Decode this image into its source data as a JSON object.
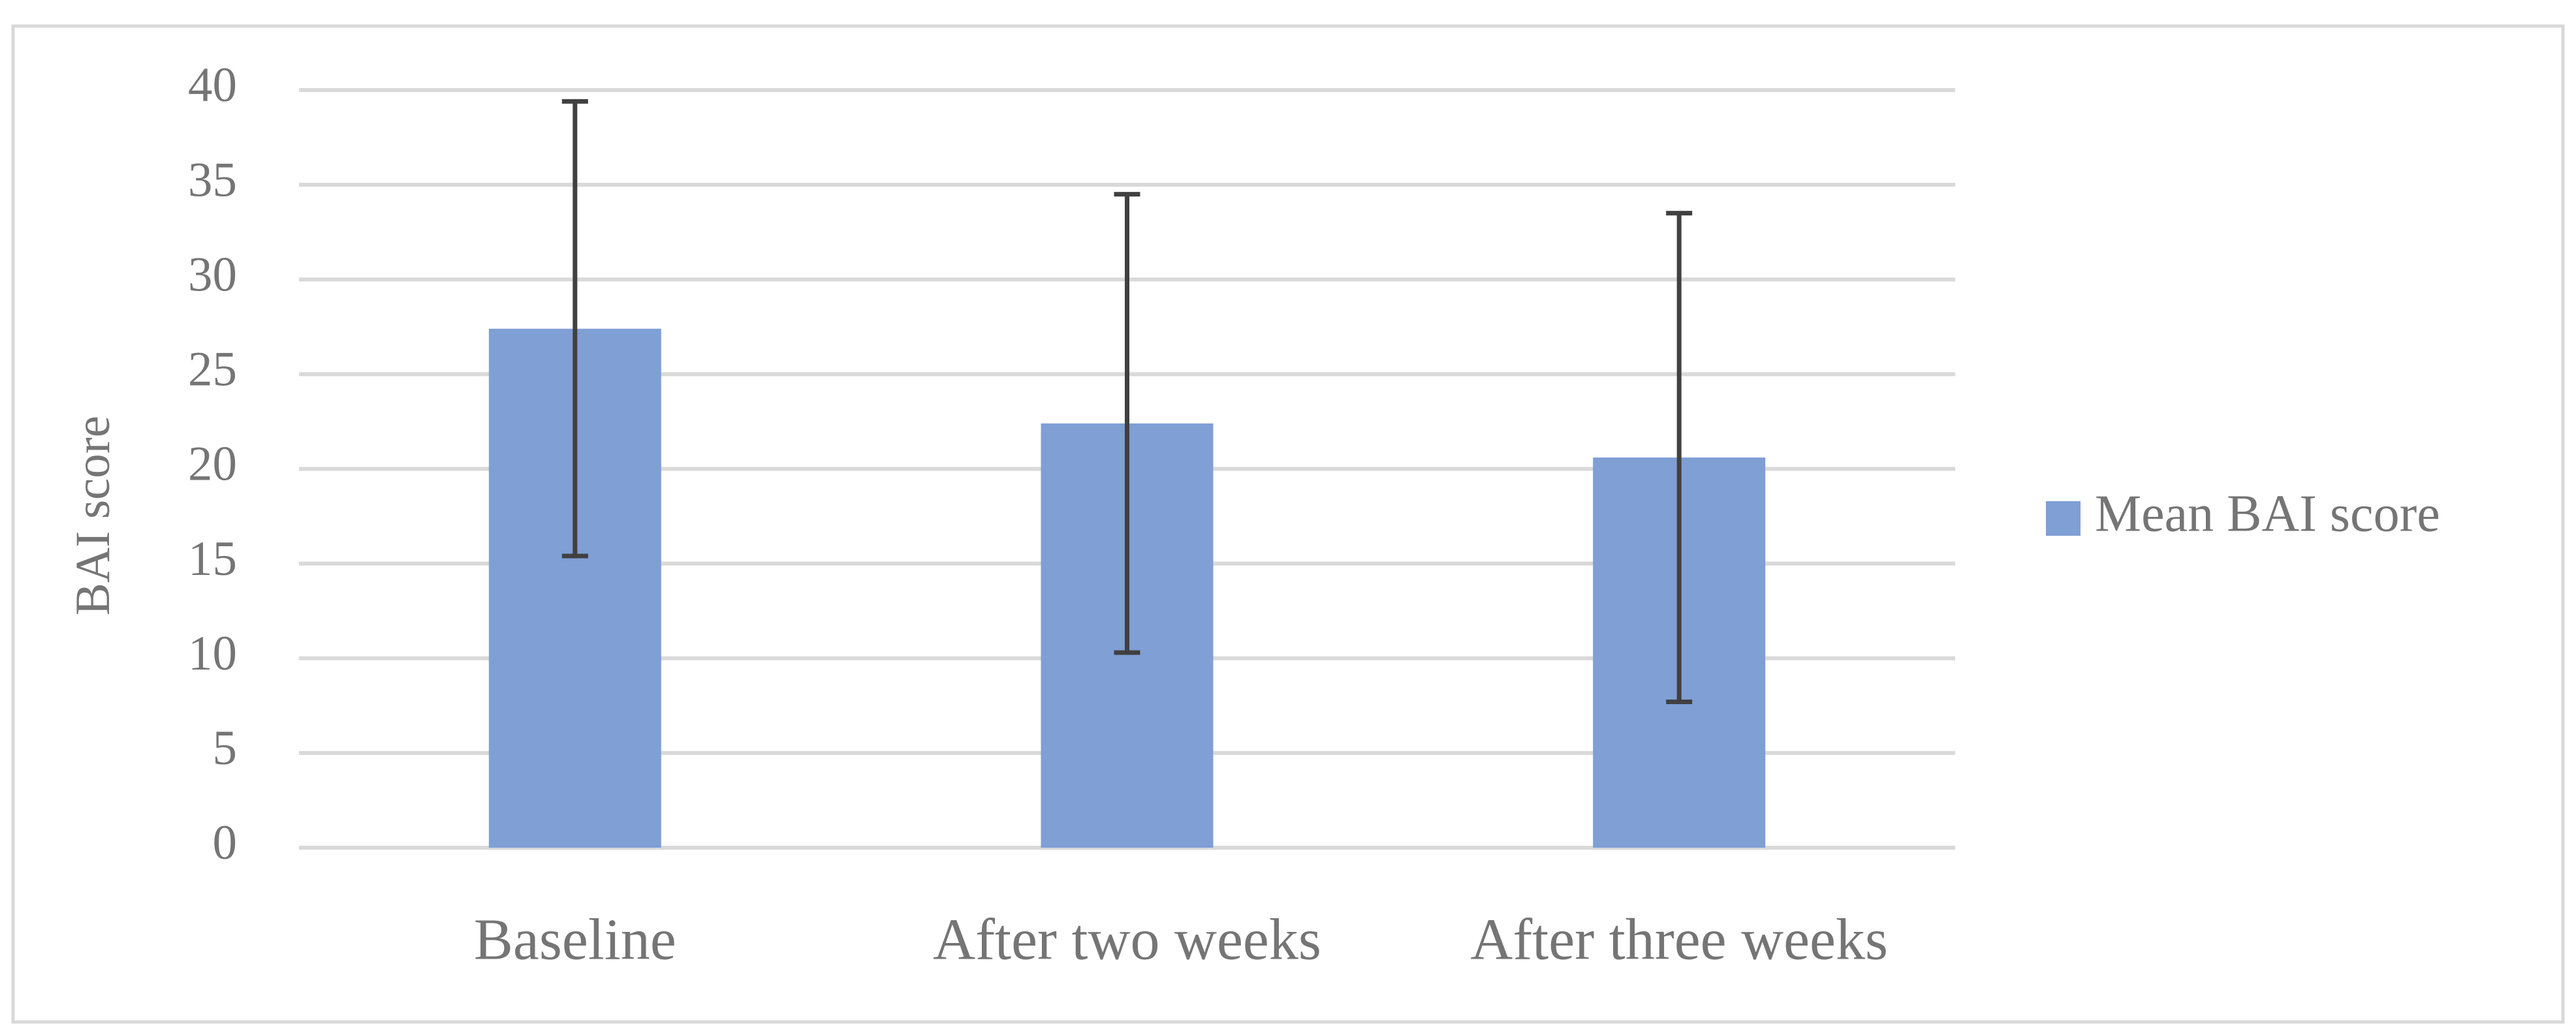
{
  "chart_data": {
    "type": "bar",
    "y_label": "BAI score",
    "categories": [
      "Baseline",
      "After two weeks",
      "After three weeks"
    ],
    "series": [
      {
        "name": "Mean BAI score",
        "color": "#7f9fd5",
        "values": [
          27.4,
          22.4,
          20.6
        ],
        "errors": [
          12.0,
          12.1,
          12.9
        ]
      }
    ],
    "ylim": [
      0,
      40
    ],
    "yticks": [
      0,
      5,
      10,
      15,
      20,
      25,
      30,
      35,
      40
    ],
    "grid": true,
    "legend": "right"
  }
}
